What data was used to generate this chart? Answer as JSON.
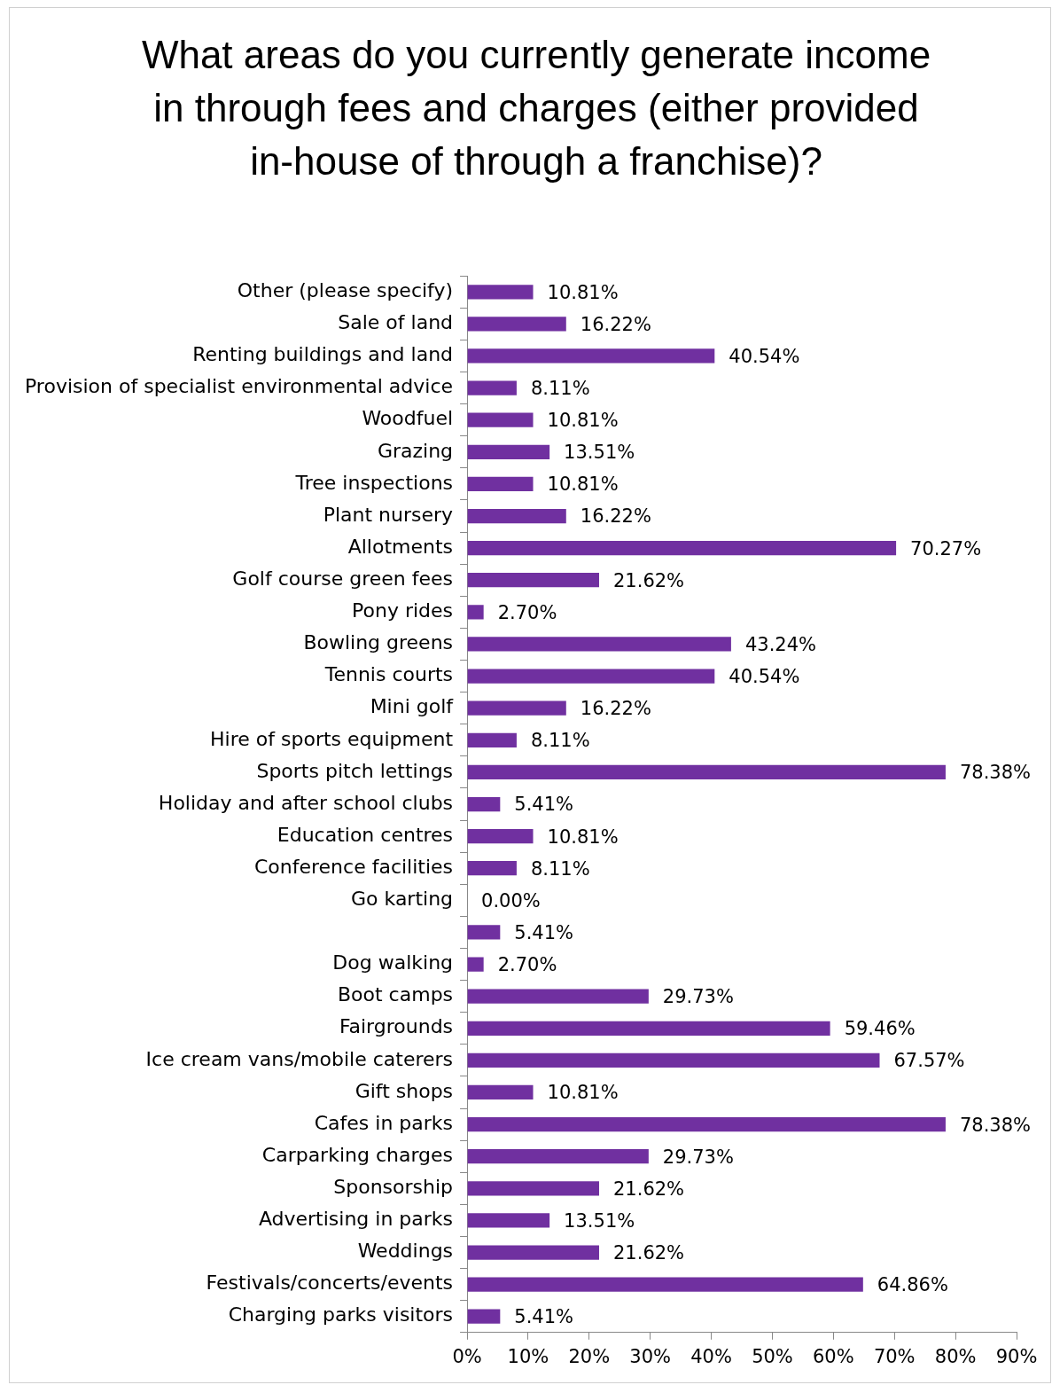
{
  "chart_data": {
    "type": "bar",
    "orientation": "horizontal",
    "title": "What areas do you currently generate income in through fees and charges (either provided in-house of through a franchise)?",
    "categories": [
      "Other (please specify)",
      "Sale of land",
      "Renting buildings and land",
      "Provision of specialist environmental advice",
      "Woodfuel",
      "Grazing",
      "Tree inspections",
      "Plant nursery",
      "Allotments",
      "Golf course green fees",
      "Pony rides",
      "Bowling greens",
      "Tennis courts",
      "Mini golf",
      "Hire of sports equipment",
      "Sports pitch lettings",
      "Holiday and after school clubs",
      "Education centres",
      "Conference facilities",
      "Go karting",
      null,
      "Dog walking",
      "Boot camps",
      "Fairgrounds",
      "Ice cream vans/mobile caterers",
      "Gift shops",
      "Cafes in parks",
      "Carparking charges",
      "Sponsorship",
      "Advertising in parks",
      "Weddings",
      "Festivals/concerts/events",
      "Charging parks visitors"
    ],
    "values": [
      10.81,
      16.22,
      40.54,
      8.11,
      10.81,
      13.51,
      10.81,
      16.22,
      70.27,
      21.62,
      2.7,
      43.24,
      40.54,
      16.22,
      8.11,
      78.38,
      5.41,
      10.81,
      8.11,
      0.0,
      5.41,
      2.7,
      29.73,
      59.46,
      67.57,
      10.81,
      78.38,
      29.73,
      21.62,
      13.51,
      21.62,
      64.86,
      5.41
    ],
    "value_labels": [
      "10.81%",
      "16.22%",
      "40.54%",
      "8.11%",
      "10.81%",
      "13.51%",
      "10.81%",
      "16.22%",
      "70.27%",
      "21.62%",
      "2.70%",
      "43.24%",
      "40.54%",
      "16.22%",
      "8.11%",
      "78.38%",
      "5.41%",
      "10.81%",
      "8.11%",
      "0.00%",
      "5.41%",
      "2.70%",
      "29.73%",
      "59.46%",
      "67.57%",
      "10.81%",
      "78.38%",
      "29.73%",
      "21.62%",
      "13.51%",
      "21.62%",
      "64.86%",
      "5.41%"
    ],
    "color": "#7030a0",
    "xlim": [
      0,
      90
    ],
    "xticks": [
      {
        "value": 0,
        "label": "0%"
      },
      {
        "value": 10,
        "label": "10%"
      },
      {
        "value": 20,
        "label": "20%"
      },
      {
        "value": 30,
        "label": "30%"
      },
      {
        "value": 40,
        "label": "40%"
      },
      {
        "value": 50,
        "label": "50%"
      },
      {
        "value": 60,
        "label": "60%"
      },
      {
        "value": 70,
        "label": "70%"
      },
      {
        "value": 80,
        "label": "80%"
      },
      {
        "value": 90,
        "label": "90%"
      }
    ],
    "grid": false,
    "legend": false
  }
}
